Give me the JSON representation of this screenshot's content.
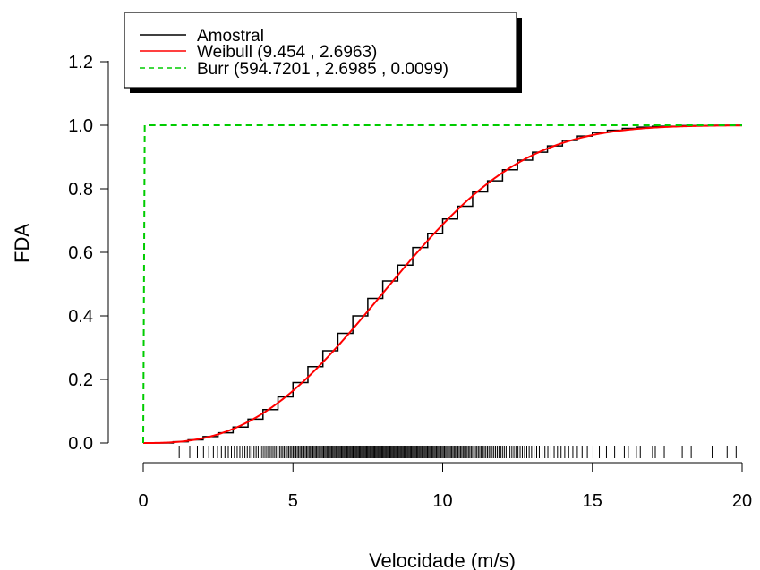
{
  "chart_data": {
    "type": "line",
    "title": "",
    "xlabel": "Velocidade (m/s)",
    "ylabel": "FDA",
    "xlim": [
      0,
      20
    ],
    "ylim": [
      0,
      1.2
    ],
    "x_ticks": [
      "0",
      "5",
      "10",
      "15",
      "20"
    ],
    "y_ticks": [
      "0.0",
      "0.2",
      "0.4",
      "0.6",
      "0.8",
      "1.0",
      "1.2"
    ],
    "grid": false,
    "legend_position": "top-left",
    "rug": true,
    "series": [
      {
        "name": "Amostral",
        "style": "step",
        "color": "#000000",
        "x": [
          0,
          0.5,
          1,
          1.5,
          2,
          2.5,
          3,
          3.5,
          4,
          4.5,
          5,
          5.5,
          6,
          6.5,
          7,
          7.5,
          8,
          8.5,
          9,
          9.5,
          10,
          10.5,
          11,
          11.5,
          12,
          12.5,
          13,
          13.5,
          14,
          14.5,
          15,
          15.5,
          16,
          16.5,
          17,
          18,
          19,
          20
        ],
        "y": [
          0.0,
          0.0,
          0.004,
          0.01,
          0.02,
          0.032,
          0.05,
          0.075,
          0.105,
          0.145,
          0.19,
          0.24,
          0.29,
          0.345,
          0.4,
          0.455,
          0.51,
          0.56,
          0.615,
          0.66,
          0.705,
          0.745,
          0.79,
          0.825,
          0.86,
          0.89,
          0.915,
          0.935,
          0.952,
          0.966,
          0.977,
          0.984,
          0.99,
          0.994,
          0.997,
          0.999,
          1.0,
          1.0
        ]
      },
      {
        "name": "Weibull (9.454 , 2.6963)",
        "style": "solid",
        "color": "#ff0000",
        "distribution": "weibull",
        "params": {
          "scale": 9.454,
          "shape": 2.6963
        }
      },
      {
        "name": "Burr (594.7201 , 2.6985 , 0.0099)",
        "style": "dashed",
        "color": "#00cc00",
        "distribution": "burr",
        "params": {
          "k": 594.7201,
          "c": 2.6985,
          "scale": 0.0099
        }
      }
    ]
  }
}
